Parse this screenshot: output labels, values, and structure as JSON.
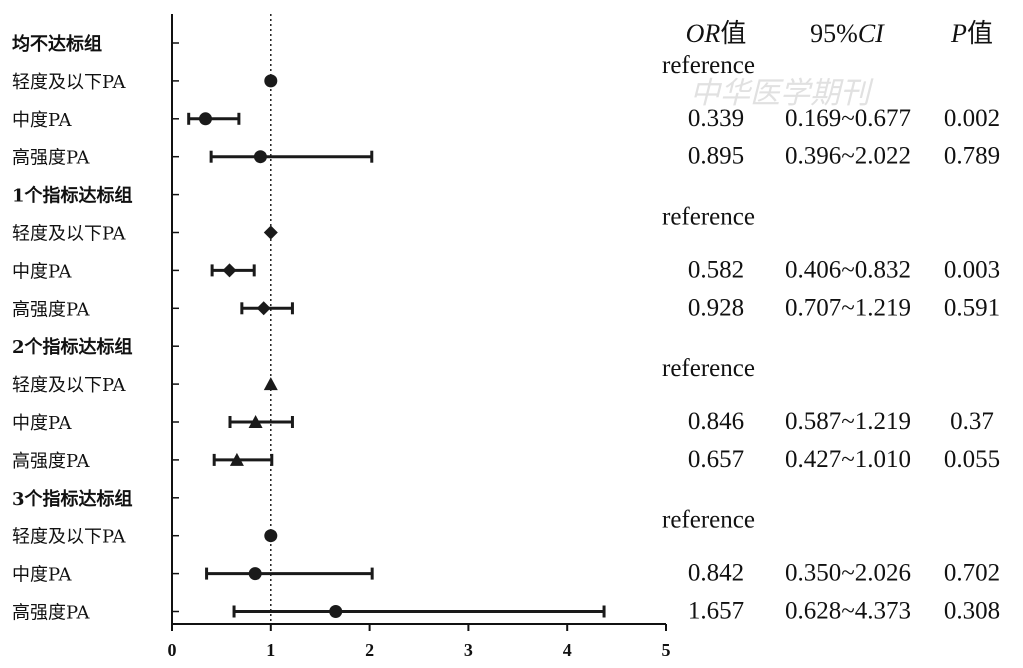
{
  "chart_data": {
    "type": "forest",
    "xlim": [
      0,
      5
    ],
    "x_ticks": [
      "0",
      "1",
      "2",
      "3",
      "4",
      "5"
    ],
    "reference_line": 1,
    "columns": {
      "or": {
        "italic": "OR",
        "plain": "值"
      },
      "ci": {
        "plain": "95%",
        "italic": "CI"
      },
      "p": {
        "italic": "P",
        "plain": "值"
      }
    },
    "rows": [
      {
        "kind": "group",
        "label": "均不达标组"
      },
      {
        "kind": "item",
        "label": "轻度及以下PA",
        "marker": "circle",
        "or": 1,
        "lo": null,
        "hi": null,
        "or_text": "reference",
        "ci_text": "",
        "p_text": ""
      },
      {
        "kind": "item",
        "label": "中度PA",
        "marker": "circle",
        "or": 0.339,
        "lo": 0.169,
        "hi": 0.677,
        "or_text": "0.339",
        "ci_text": "0.169~0.677",
        "p_text": "0.002"
      },
      {
        "kind": "item",
        "label": "高强度PA",
        "marker": "circle",
        "or": 0.895,
        "lo": 0.396,
        "hi": 2.022,
        "or_text": "0.895",
        "ci_text": "0.396~2.022",
        "p_text": "0.789"
      },
      {
        "kind": "group",
        "label": "1个指标达标组"
      },
      {
        "kind": "item",
        "label": "轻度及以下PA",
        "marker": "diamond",
        "or": 1,
        "lo": null,
        "hi": null,
        "or_text": "reference",
        "ci_text": "",
        "p_text": ""
      },
      {
        "kind": "item",
        "label": "中度PA",
        "marker": "diamond",
        "or": 0.582,
        "lo": 0.406,
        "hi": 0.832,
        "or_text": "0.582",
        "ci_text": "0.406~0.832",
        "p_text": "0.003"
      },
      {
        "kind": "item",
        "label": "高强度PA",
        "marker": "diamond",
        "or": 0.928,
        "lo": 0.707,
        "hi": 1.219,
        "or_text": "0.928",
        "ci_text": "0.707~1.219",
        "p_text": "0.591"
      },
      {
        "kind": "group",
        "label": "2个指标达标组"
      },
      {
        "kind": "item",
        "label": "轻度及以下PA",
        "marker": "triangle",
        "or": 1,
        "lo": null,
        "hi": null,
        "or_text": "reference",
        "ci_text": "",
        "p_text": ""
      },
      {
        "kind": "item",
        "label": "中度PA",
        "marker": "triangle",
        "or": 0.846,
        "lo": 0.587,
        "hi": 1.219,
        "or_text": "0.846",
        "ci_text": "0.587~1.219",
        "p_text": "0.37"
      },
      {
        "kind": "item",
        "label": "高强度PA",
        "marker": "triangle",
        "or": 0.657,
        "lo": 0.427,
        "hi": 1.01,
        "or_text": "0.657",
        "ci_text": "0.427~1.010",
        "p_text": "0.055"
      },
      {
        "kind": "group",
        "label": "3个指标达标组"
      },
      {
        "kind": "item",
        "label": "轻度及以下PA",
        "marker": "circle",
        "or": 1,
        "lo": null,
        "hi": null,
        "or_text": "reference",
        "ci_text": "",
        "p_text": ""
      },
      {
        "kind": "item",
        "label": "中度PA",
        "marker": "circle",
        "or": 0.842,
        "lo": 0.35,
        "hi": 2.026,
        "or_text": "0.842",
        "ci_text": "0.350~2.026",
        "p_text": "0.702"
      },
      {
        "kind": "item",
        "label": "高强度PA",
        "marker": "circle",
        "or": 1.657,
        "lo": 0.628,
        "hi": 4.373,
        "or_text": "1.657",
        "ci_text": "0.628~4.373",
        "p_text": "0.308"
      }
    ],
    "marker_color": "#1a1a1a",
    "watermark": "中华医学期刊"
  }
}
